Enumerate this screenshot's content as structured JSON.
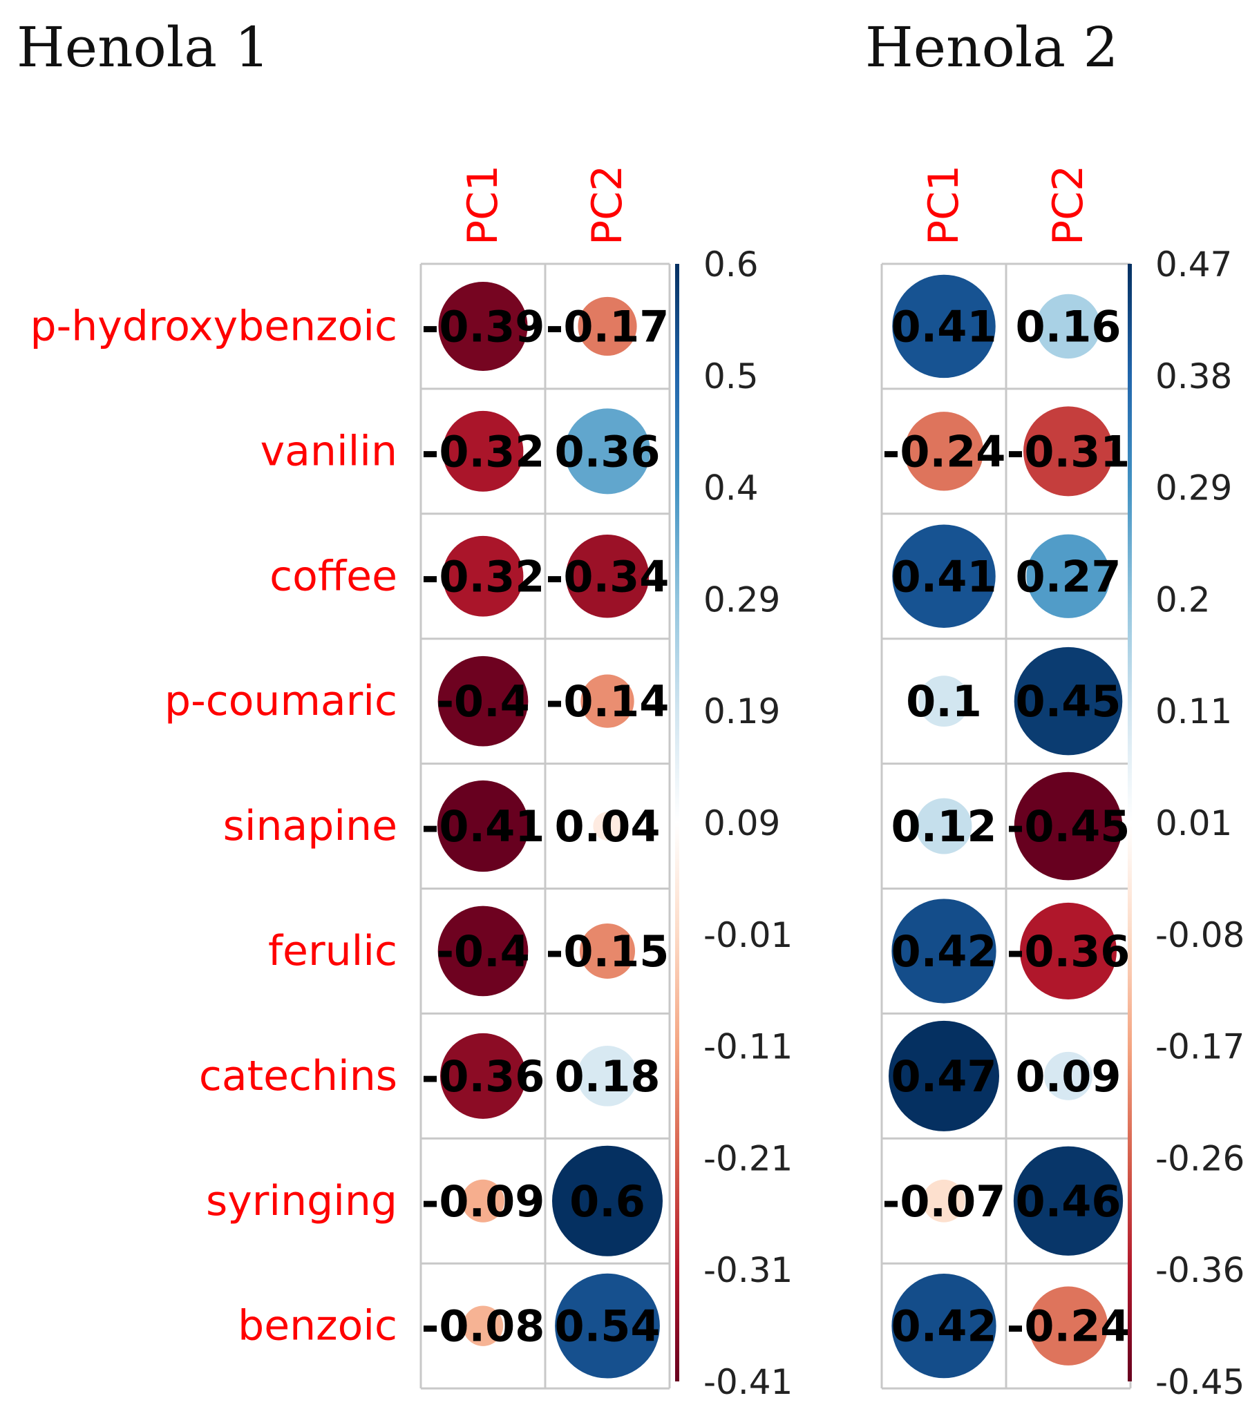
{
  "chart_data": [
    {
      "type": "heatmap",
      "title": "Henola 1",
      "columns": [
        "PC1",
        "PC2"
      ],
      "rows": [
        "p-hydroxybenzoic",
        "vanilin",
        "coffee",
        "p-coumaric",
        "sinapine",
        "ferulic",
        "catechins",
        "syringing",
        "benzoic"
      ],
      "values": [
        [
          -0.39,
          -0.17
        ],
        [
          -0.32,
          0.36
        ],
        [
          -0.32,
          -0.34
        ],
        [
          -0.4,
          -0.14
        ],
        [
          -0.41,
          0.04
        ],
        [
          -0.4,
          -0.15
        ],
        [
          -0.36,
          0.18
        ],
        [
          -0.09,
          0.6
        ],
        [
          -0.08,
          0.54
        ]
      ],
      "value_labels": [
        [
          "-0.39",
          "-0.17"
        ],
        [
          "-0.32",
          "0.36"
        ],
        [
          "-0.32",
          "-0.34"
        ],
        [
          "-0.4",
          "-0.14"
        ],
        [
          "-0.41",
          "0.04"
        ],
        [
          "-0.4",
          "-0.15"
        ],
        [
          "-0.36",
          "0.18"
        ],
        [
          "-0.09",
          "0.6"
        ],
        [
          "-0.08",
          "0.54"
        ]
      ],
      "colorbar": {
        "range": [
          -0.41,
          0.6
        ],
        "ticks": [
          "0.6",
          "0.5",
          "0.4",
          "0.29",
          "0.19",
          "0.09",
          "-0.01",
          "-0.11",
          "-0.21",
          "-0.31",
          "-0.41"
        ]
      }
    },
    {
      "type": "heatmap",
      "title": "Henola 2",
      "columns": [
        "PC1",
        "PC2"
      ],
      "rows": [
        "p-hydroxybenzoic",
        "vanilin",
        "coffee",
        "p-coumaric",
        "sinapine",
        "ferulic",
        "catechins",
        "syringing",
        "benzoic"
      ],
      "values": [
        [
          0.41,
          0.16
        ],
        [
          -0.24,
          -0.31
        ],
        [
          0.41,
          0.27
        ],
        [
          0.1,
          0.45
        ],
        [
          0.12,
          -0.45
        ],
        [
          0.42,
          -0.36
        ],
        [
          0.47,
          0.09
        ],
        [
          -0.07,
          0.46
        ],
        [
          0.42,
          -0.24
        ]
      ],
      "value_labels": [
        [
          "0.41",
          "0.16"
        ],
        [
          "-0.24",
          "-0.31"
        ],
        [
          "0.41",
          "0.27"
        ],
        [
          "0.1",
          "0.45"
        ],
        [
          "0.12",
          "-0.45"
        ],
        [
          "0.42",
          "-0.36"
        ],
        [
          "0.47",
          "0.09"
        ],
        [
          "-0.07",
          "0.46"
        ],
        [
          "0.42",
          "-0.24"
        ]
      ],
      "colorbar": {
        "range": [
          -0.45,
          0.47
        ],
        "ticks": [
          "0.47",
          "0.38",
          "0.29",
          "0.2",
          "0.11",
          "0.01",
          "-0.08",
          "-0.17",
          "-0.26",
          "-0.36",
          "-0.45"
        ]
      }
    }
  ],
  "colors": {
    "label": "#ff0000",
    "grid": "#c8c8c8",
    "value_text": "#000000",
    "gradient": [
      "#67001f",
      "#b2182b",
      "#d6604d",
      "#f4a582",
      "#fddbc7",
      "#ffffff",
      "#d1e5f0",
      "#92c5de",
      "#4393c3",
      "#2166ac",
      "#053061"
    ]
  }
}
